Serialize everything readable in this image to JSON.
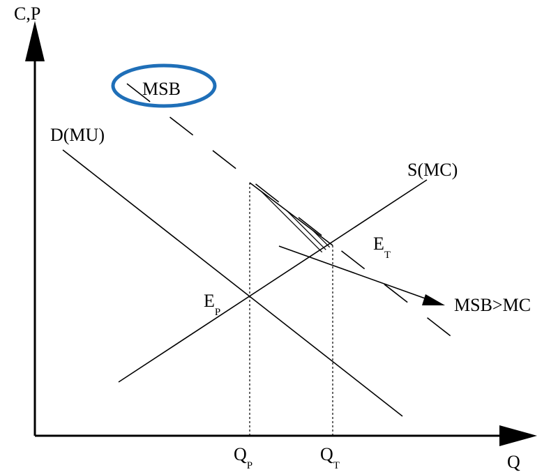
{
  "axes": {
    "y_label": "C,P",
    "x_label": "Q"
  },
  "curves": {
    "demand": "D(MU)",
    "supply": "S(MC)",
    "msb": "MSB"
  },
  "points": {
    "private_eq": {
      "main": "E",
      "sub": "P"
    },
    "social_eq": {
      "main": "E",
      "sub": "T"
    }
  },
  "quantities": {
    "private": {
      "main": "Q",
      "sub": "P"
    },
    "social": {
      "main": "Q",
      "sub": "T"
    }
  },
  "annotation": "MSB>MC",
  "colors": {
    "highlight_ellipse": "#1f6fb8",
    "ink": "#000000"
  }
}
